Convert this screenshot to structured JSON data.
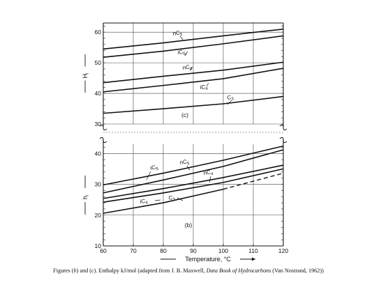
{
  "chart_data": [
    {
      "panel": "(c)",
      "type": "line",
      "ylabel": "H",
      "ylabel_sub": "i",
      "xlim": [
        60,
        120
      ],
      "ylim": [
        30,
        63
      ],
      "yticks": [
        30,
        40,
        50,
        60
      ],
      "series": [
        {
          "name": "nC",
          "name_sub": "5",
          "x": [
            60,
            80,
            100,
            120
          ],
          "y": [
            54.5,
            56.5,
            58.8,
            61.0
          ]
        },
        {
          "name": "iC",
          "name_sub": "5",
          "x": [
            60,
            80,
            100,
            120
          ],
          "y": [
            51.8,
            53.8,
            56.2,
            58.8
          ]
        },
        {
          "name": "nC",
          "name_sub": "4",
          "x": [
            60,
            80,
            100,
            120
          ],
          "y": [
            43.5,
            45.6,
            47.6,
            50.2
          ]
        },
        {
          "name": "iC",
          "name_sub": "4",
          "x": [
            60,
            80,
            100,
            120
          ],
          "y": [
            40.5,
            42.6,
            44.8,
            48.2
          ]
        },
        {
          "name": "C",
          "name_sub": "3",
          "x": [
            60,
            80,
            100,
            120
          ],
          "y": [
            33.5,
            35.0,
            36.6,
            39.0
          ]
        }
      ]
    },
    {
      "panel": "(b)",
      "type": "line",
      "ylabel": "h",
      "ylabel_sub": "i",
      "xlabel": "Temperature, °C",
      "xlim": [
        60,
        120
      ],
      "xticks": [
        60,
        70,
        80,
        90,
        100,
        110,
        120
      ],
      "ylim": [
        10,
        43
      ],
      "yticks": [
        10,
        20,
        30,
        40
      ],
      "series": [
        {
          "name": "iC",
          "name_sub": "5",
          "x": [
            60,
            80,
            100,
            120
          ],
          "y": [
            29.8,
            33.6,
            37.8,
            42.4
          ]
        },
        {
          "name": "nC",
          "name_sub": "5",
          "x": [
            60,
            80,
            100,
            120
          ],
          "y": [
            27.2,
            31.4,
            35.8,
            41.2
          ]
        },
        {
          "name": "nC",
          "name_sub": "4",
          "x": [
            60,
            80,
            100,
            120
          ],
          "y": [
            25.4,
            28.6,
            32.2,
            36.2
          ]
        },
        {
          "name": "iC",
          "name_sub": "4",
          "x": [
            60,
            80,
            100,
            120
          ],
          "y": [
            24.2,
            27.2,
            30.6,
            35.0
          ]
        },
        {
          "name": "C",
          "name_sub": "3",
          "x": [
            60,
            80,
            100,
            120
          ],
          "y": [
            20.6,
            24.0,
            28.4,
            33.6
          ],
          "dashed_from": 100
        }
      ]
    }
  ],
  "caption": {
    "part1": "Figures (",
    "b": "b",
    "part2": ") and (",
    "c": "c",
    "part3": ").  Enthalpy kJ/mol (adapted from J. B. Maxwell, ",
    "book": "Data Book of Hydrocarbons",
    "part4": " (Van Nostrand, 1962))"
  }
}
